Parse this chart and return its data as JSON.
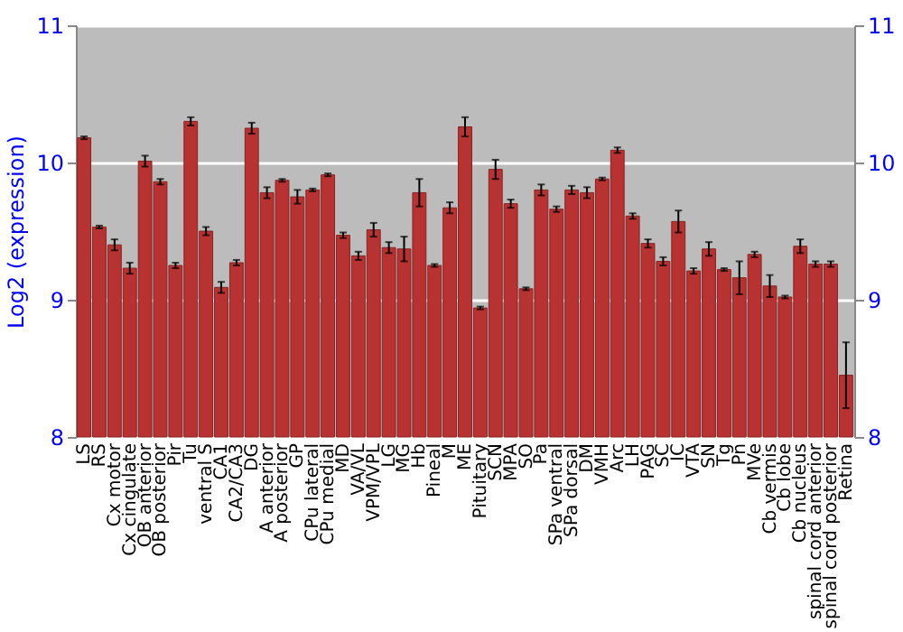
{
  "chart_data": {
    "type": "bar",
    "ylabel": "Log2 (expression)",
    "categories": [
      "LS",
      "RS",
      "Cx motor",
      "Cx cingulate",
      "OB anterior",
      "OB posterior",
      "Pir",
      "Tu",
      "ventral S",
      "CA1",
      "CA2/CA3",
      "DG",
      "A anterior",
      "A posterior",
      "GP",
      "CPu lateral",
      "CPu medial",
      "MD",
      "VA/VL",
      "VPM/VPL",
      "LG",
      "MG",
      "Hb",
      "Pineal",
      "M",
      "ME",
      "Pituitary",
      "SCN",
      "MPA",
      "SO",
      "Pa",
      "SPa ventral",
      "SPa dorsal",
      "DM",
      "VMH",
      "Arc",
      "LH",
      "PAG",
      "SC",
      "IC",
      "VTA",
      "SN",
      "Tg",
      "Pn",
      "MVe",
      "Cb vermis",
      "Cb lobe",
      "Cb nucleus",
      "spinal cord anterior",
      "spinal cord posterior",
      "Retina"
    ],
    "values": [
      10.18,
      9.53,
      9.4,
      9.23,
      10.01,
      9.86,
      9.25,
      10.3,
      9.5,
      9.09,
      9.27,
      10.25,
      9.78,
      9.87,
      9.75,
      9.8,
      9.91,
      9.47,
      9.32,
      9.51,
      9.38,
      9.37,
      9.78,
      9.25,
      9.67,
      10.26,
      8.94,
      9.95,
      9.7,
      9.08,
      9.8,
      9.66,
      9.8,
      9.78,
      9.88,
      10.09,
      9.61,
      9.41,
      9.28,
      9.57,
      9.21,
      9.37,
      9.22,
      9.16,
      9.33,
      9.1,
      9.02,
      9.39,
      9.26,
      9.26,
      8.45
    ],
    "errors": [
      0.01,
      0.01,
      0.04,
      0.04,
      0.04,
      0.02,
      0.02,
      0.03,
      0.03,
      0.04,
      0.02,
      0.04,
      0.04,
      0.01,
      0.05,
      0.01,
      0.01,
      0.02,
      0.03,
      0.05,
      0.04,
      0.09,
      0.1,
      0.01,
      0.04,
      0.07,
      0.01,
      0.07,
      0.03,
      0.01,
      0.04,
      0.02,
      0.03,
      0.04,
      0.01,
      0.02,
      0.02,
      0.03,
      0.03,
      0.08,
      0.02,
      0.05,
      0.01,
      0.12,
      0.02,
      0.08,
      0.01,
      0.05,
      0.02,
      0.02,
      0.24
    ],
    "color": "#b83232",
    "ylim": [
      8,
      11
    ],
    "yticks": [
      8,
      9,
      10,
      11
    ],
    "y2lim": [
      8,
      11
    ],
    "y2ticks": [
      8,
      9,
      10,
      11
    ],
    "grid": "y"
  }
}
